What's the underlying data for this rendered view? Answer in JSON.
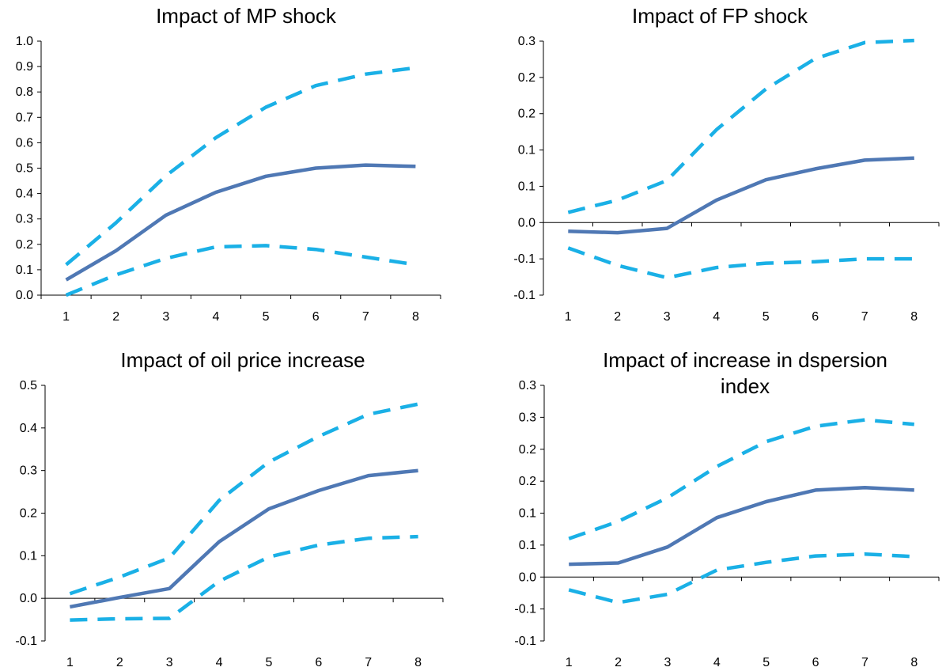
{
  "figure": {
    "background": "#ffffff",
    "axis_color": "#000000"
  },
  "chart_data": [
    {
      "type": "line",
      "title_lines": [
        "Impact of MP shock"
      ],
      "categories": [
        "1",
        "2",
        "3",
        "4",
        "5",
        "6",
        "7",
        "8"
      ],
      "yticks": [
        "1.0",
        "0.9",
        "0.8",
        "0.7",
        "0.6",
        "0.5",
        "0.4",
        "0.3",
        "0.2",
        "0.1",
        "0.0"
      ],
      "ylim": [
        0,
        1.0
      ],
      "series": [
        {
          "values": [
            0.06,
            0.175,
            0.315,
            0.405,
            0.468,
            0.5,
            0.512,
            0.507
          ],
          "color": "#4f78b4",
          "style": "solid"
        },
        {
          "values": [
            0.12,
            0.285,
            0.47,
            0.62,
            0.74,
            0.825,
            0.87,
            0.895
          ],
          "color": "#1ab0e6",
          "style": "dashed"
        },
        {
          "values": [
            0.0,
            0.08,
            0.145,
            0.19,
            0.195,
            0.18,
            0.15,
            0.12
          ],
          "color": "#1ab0e6",
          "style": "dashed"
        }
      ]
    },
    {
      "type": "line",
      "title_lines": [
        "Impact of FP shock"
      ],
      "categories": [
        "1",
        "2",
        "3",
        "4",
        "5",
        "6",
        "7",
        "8"
      ],
      "yticks": [
        "0.3",
        "0.2",
        "0.2",
        "0.1",
        "0.1",
        "0.0",
        "-0.1",
        "-0.1"
      ],
      "ylim": [
        -0.1,
        0.25
      ],
      "series": [
        {
          "values": [
            -0.012,
            -0.014,
            -0.008,
            0.031,
            0.059,
            0.074,
            0.086,
            0.089
          ],
          "color": "#4f78b4",
          "style": "solid"
        },
        {
          "values": [
            0.014,
            0.031,
            0.058,
            0.128,
            0.184,
            0.226,
            0.248,
            0.251
          ],
          "color": "#1ab0e6",
          "style": "dashed"
        },
        {
          "values": [
            -0.035,
            -0.059,
            -0.076,
            -0.062,
            -0.056,
            -0.054,
            -0.05,
            -0.05
          ],
          "color": "#1ab0e6",
          "style": "dashed"
        }
      ]
    },
    {
      "type": "line",
      "title_lines": [
        "Impact of oil price increase"
      ],
      "categories": [
        "1",
        "2",
        "3",
        "4",
        "5",
        "6",
        "7",
        "8"
      ],
      "yticks": [
        "0.5",
        "0.4",
        "0.3",
        "0.2",
        "0.1",
        "0.0",
        "-0.1"
      ],
      "ylim": [
        -0.1,
        0.5
      ],
      "series": [
        {
          "values": [
            -0.02,
            0.002,
            0.023,
            0.133,
            0.21,
            0.253,
            0.288,
            0.3
          ],
          "color": "#4f78b4",
          "style": "solid"
        },
        {
          "values": [
            0.011,
            0.05,
            0.095,
            0.23,
            0.32,
            0.38,
            0.432,
            0.456
          ],
          "color": "#1ab0e6",
          "style": "dashed"
        },
        {
          "values": [
            -0.051,
            -0.048,
            -0.047,
            0.04,
            0.097,
            0.125,
            0.141,
            0.145
          ],
          "color": "#1ab0e6",
          "style": "dashed"
        }
      ]
    },
    {
      "type": "line",
      "title_lines": [
        "Impact of increase in dspersion",
        "index"
      ],
      "categories": [
        "1",
        "2",
        "3",
        "4",
        "5",
        "6",
        "7",
        "8"
      ],
      "yticks": [
        "0.3",
        "0.3",
        "0.2",
        "0.2",
        "0.1",
        "0.1",
        "0.0",
        "-0.1",
        "-0.1"
      ],
      "ylim": [
        -0.1,
        0.3
      ],
      "series": [
        {
          "values": [
            0.02,
            0.022,
            0.047,
            0.093,
            0.118,
            0.136,
            0.14,
            0.136
          ],
          "color": "#4f78b4",
          "style": "solid"
        },
        {
          "values": [
            0.06,
            0.087,
            0.124,
            0.173,
            0.212,
            0.236,
            0.246,
            0.239
          ],
          "color": "#1ab0e6",
          "style": "dashed"
        },
        {
          "values": [
            -0.02,
            -0.04,
            -0.027,
            0.011,
            0.023,
            0.033,
            0.036,
            0.032
          ],
          "color": "#1ab0e6",
          "style": "dashed"
        }
      ]
    }
  ]
}
